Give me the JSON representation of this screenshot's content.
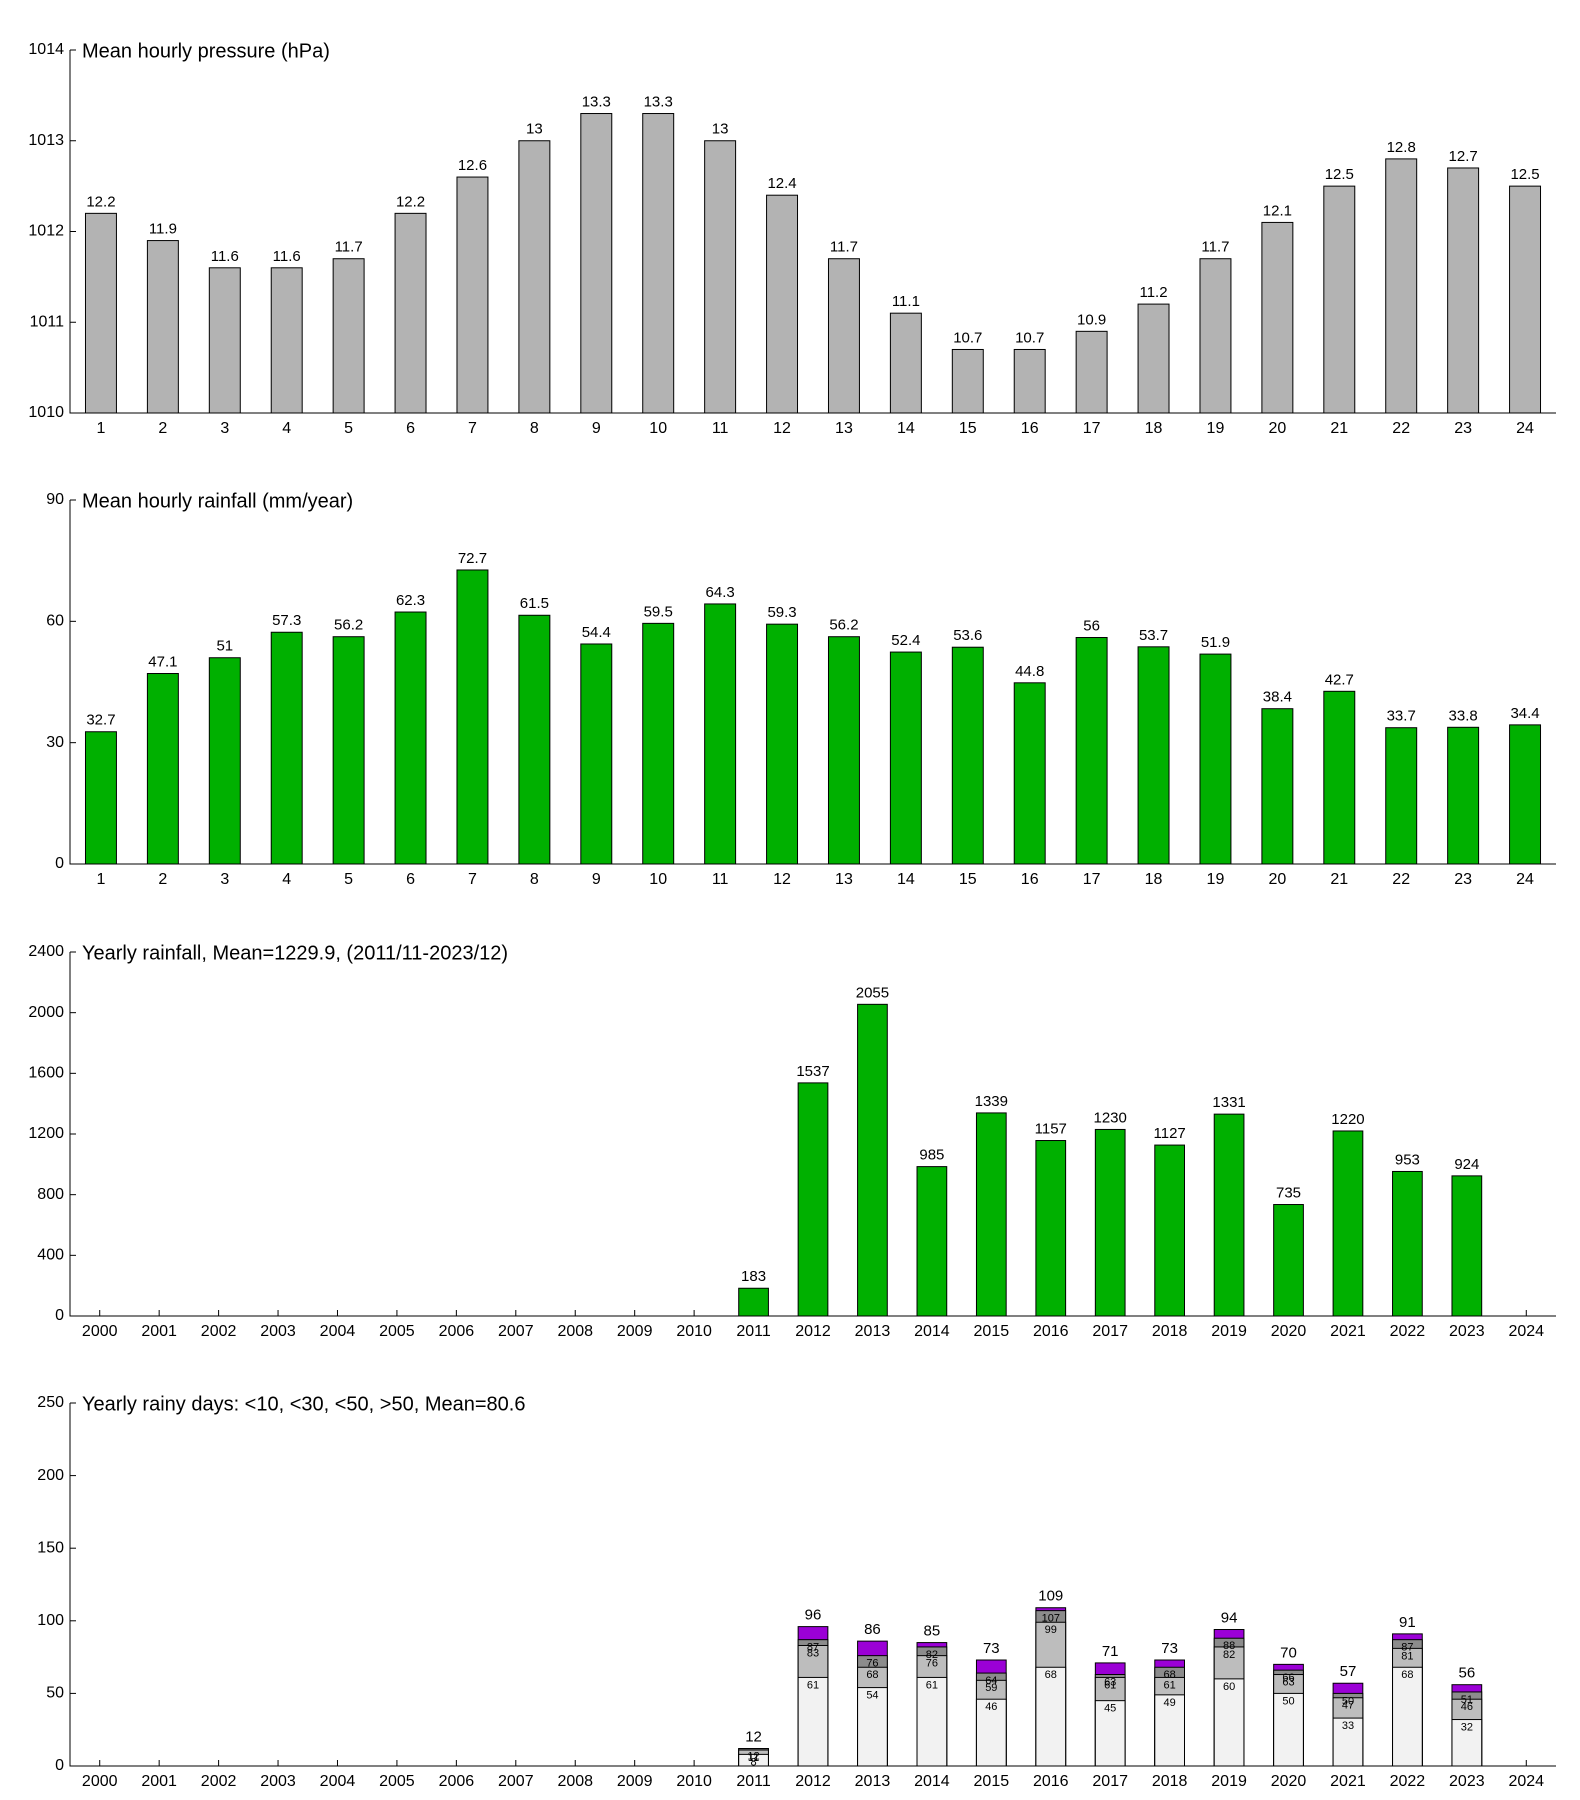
{
  "chart_data": [
    {
      "type": "bar",
      "title": "Mean hourly pressure (hPa)",
      "categories": [
        "1",
        "2",
        "3",
        "4",
        "5",
        "6",
        "7",
        "8",
        "9",
        "10",
        "11",
        "12",
        "13",
        "14",
        "15",
        "16",
        "17",
        "18",
        "19",
        "20",
        "21",
        "22",
        "23",
        "24"
      ],
      "values": [
        1012.2,
        1011.9,
        1011.6,
        1011.6,
        1011.7,
        1012.2,
        1012.6,
        1013,
        1013.3,
        1013.3,
        1013,
        1012.4,
        1011.7,
        1011.1,
        1010.7,
        1010.7,
        1010.9,
        1011.2,
        1011.7,
        1012.1,
        1012.5,
        1012.8,
        1012.7,
        1012.5
      ],
      "value_labels": [
        "12.2",
        "11.9",
        "11.6",
        "11.6",
        "11.7",
        "12.2",
        "12.6",
        "13",
        "13.3",
        "13.3",
        "13",
        "12.4",
        "11.7",
        "11.1",
        "10.7",
        "10.7",
        "10.9",
        "11.2",
        "11.7",
        "12.1",
        "12.5",
        "12.8",
        "12.7",
        "12.5"
      ],
      "color": "#b3b3b3",
      "ylim": [
        1010,
        1014
      ],
      "yticks": [
        1010,
        1011,
        1012,
        1013,
        1014
      ]
    },
    {
      "type": "bar",
      "title": "Mean hourly rainfall (mm/year)",
      "categories": [
        "1",
        "2",
        "3",
        "4",
        "5",
        "6",
        "7",
        "8",
        "9",
        "10",
        "11",
        "12",
        "13",
        "14",
        "15",
        "16",
        "17",
        "18",
        "19",
        "20",
        "21",
        "22",
        "23",
        "24"
      ],
      "values": [
        32.7,
        47.1,
        51,
        57.3,
        56.2,
        62.3,
        72.7,
        61.5,
        54.4,
        59.5,
        64.3,
        59.3,
        56.2,
        52.4,
        53.6,
        44.8,
        56,
        53.7,
        51.9,
        38.4,
        42.7,
        33.7,
        33.8,
        34.4
      ],
      "color": "#00b000",
      "ylim": [
        0,
        90
      ],
      "yticks": [
        0,
        30,
        60,
        90
      ]
    },
    {
      "type": "bar",
      "title": "Yearly rainfall, Mean=1229.9, (2011/11-2023/12)",
      "categories": [
        "2000",
        "2001",
        "2002",
        "2003",
        "2004",
        "2005",
        "2006",
        "2007",
        "2008",
        "2009",
        "2010",
        "2011",
        "2012",
        "2013",
        "2014",
        "2015",
        "2016",
        "2017",
        "2018",
        "2019",
        "2020",
        "2021",
        "2022",
        "2023",
        "2024"
      ],
      "values": [
        null,
        null,
        null,
        null,
        null,
        null,
        null,
        null,
        null,
        null,
        null,
        183,
        1537,
        2055,
        985,
        1339,
        1157,
        1230,
        1127,
        1331,
        735,
        1220,
        953,
        924,
        null
      ],
      "color": "#00b000",
      "ylim": [
        0,
        2400
      ],
      "yticks": [
        0,
        400,
        800,
        1200,
        1600,
        2000,
        2400
      ]
    },
    {
      "type": "overlapped_bar",
      "title": "Yearly rainy days: <10, <30, <50, >50, Mean=80.6",
      "categories": [
        "2000",
        "2001",
        "2002",
        "2003",
        "2004",
        "2005",
        "2006",
        "2007",
        "2008",
        "2009",
        "2010",
        "2011",
        "2012",
        "2013",
        "2014",
        "2015",
        "2016",
        "2017",
        "2018",
        "2019",
        "2020",
        "2021",
        "2022",
        "2023",
        "2024"
      ],
      "series": [
        {
          "color": "#f2f2f2",
          "values": [
            null,
            null,
            null,
            null,
            null,
            null,
            null,
            null,
            null,
            null,
            null,
            8,
            61,
            54,
            61,
            46,
            68,
            45,
            49,
            60,
            50,
            33,
            68,
            32,
            null
          ]
        },
        {
          "color": "#bdbdbd",
          "values": [
            null,
            null,
            null,
            null,
            null,
            null,
            null,
            null,
            null,
            null,
            null,
            11,
            83,
            68,
            76,
            59,
            99,
            61,
            61,
            82,
            63,
            47,
            81,
            46,
            null
          ]
        },
        {
          "color": "#8c8c8c",
          "values": [
            null,
            null,
            null,
            null,
            null,
            null,
            null,
            null,
            null,
            null,
            null,
            12,
            87,
            76,
            82,
            64,
            107,
            63,
            68,
            88,
            66,
            50,
            87,
            51,
            null
          ]
        },
        {
          "color": "#9b00d6",
          "values": [
            null,
            null,
            null,
            null,
            null,
            null,
            null,
            null,
            null,
            null,
            null,
            12,
            96,
            86,
            85,
            73,
            109,
            71,
            73,
            94,
            70,
            57,
            91,
            56,
            null
          ]
        }
      ],
      "ylim": [
        0,
        250
      ],
      "yticks": [
        0,
        50,
        100,
        150,
        200,
        250
      ]
    }
  ]
}
